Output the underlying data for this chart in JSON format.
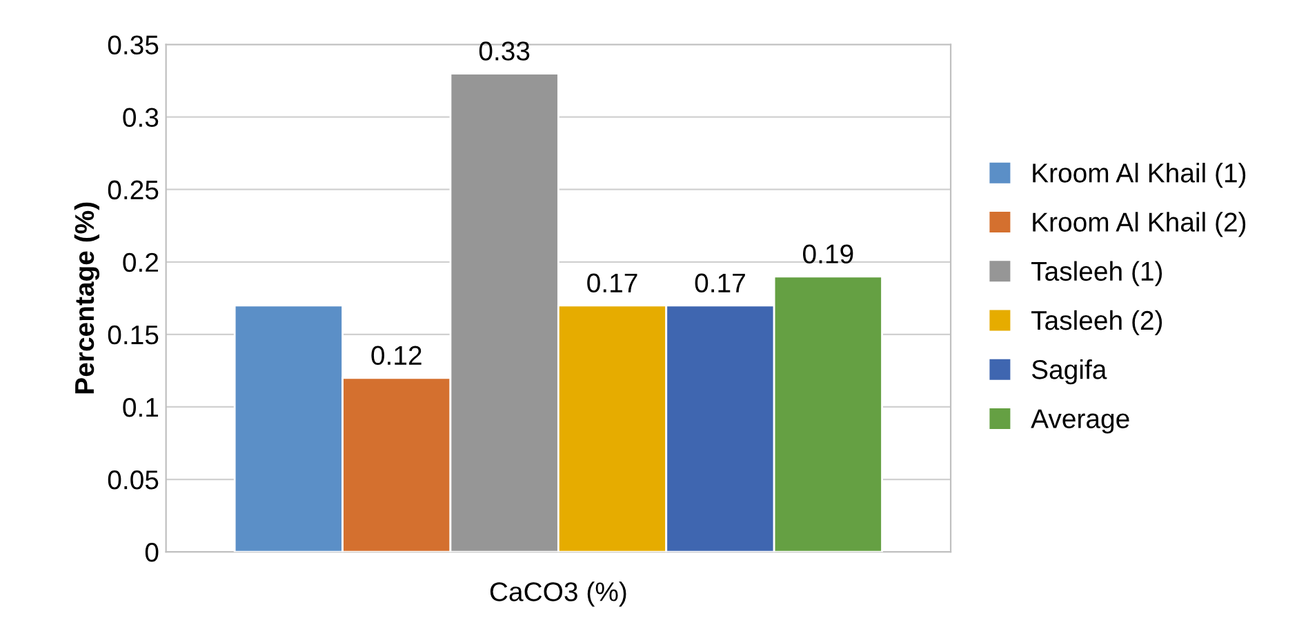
{
  "chart_data": {
    "type": "bar",
    "xlabel": "CaCO3 (%)",
    "ylabel": "Percentage (%)",
    "categories": [
      null
    ],
    "series": [
      {
        "name": "Kroom Al Khail (1)",
        "color": "#5b8fc7",
        "values": [
          0.17
        ],
        "value_labels": [
          null
        ]
      },
      {
        "name": "Kroom Al Khail (2)",
        "color": "#d4702f",
        "values": [
          0.12
        ],
        "value_labels": [
          "0.12"
        ]
      },
      {
        "name": "Tasleeh (1)",
        "color": "#969696",
        "values": [
          0.33
        ],
        "value_labels": [
          "0.33"
        ]
      },
      {
        "name": "Tasleeh (2)",
        "color": "#e6ac00",
        "values": [
          0.17
        ],
        "value_labels": [
          "0.17"
        ]
      },
      {
        "name": "Sagifa",
        "color": "#3f66b0",
        "values": [
          0.17
        ],
        "value_labels": [
          "0.17"
        ]
      },
      {
        "name": "Average",
        "color": "#65a043",
        "values": [
          0.19
        ],
        "value_labels": [
          "0.19"
        ]
      }
    ],
    "ylim": [
      0,
      0.35
    ],
    "yticks": [
      0,
      0.05,
      0.1,
      0.15,
      0.2,
      0.25,
      0.3,
      0.35
    ],
    "grid": "y",
    "legend": "right"
  }
}
